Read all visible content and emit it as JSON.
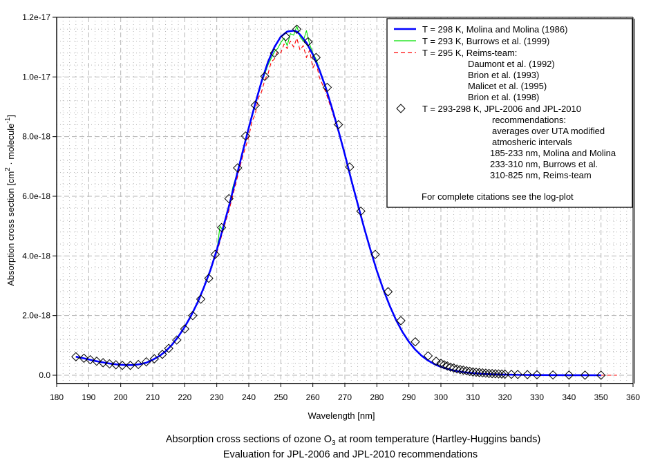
{
  "chart_data": {
    "type": "line",
    "title": "Absorption cross sections of ozone O3 at room temperature (Hartley-Huggins bands)",
    "title_parts": {
      "before": "Absorption cross sections of ozone O",
      "subscript": "3",
      "after": " at room temperature (Hartley-Huggins bands)"
    },
    "subtitle": "Evaluation for JPL-2006 and JPL-2010 recommendations",
    "xlabel": "Wavelength [nm]",
    "ylabel_parts": {
      "a": "Absorption cross section [cm",
      "sup1": "2",
      "b": " · molecule",
      "sup2": "-1",
      "c": "]"
    },
    "ylabel": "Absorption cross section [cm2 · molecule-1]",
    "xlim": [
      180,
      360
    ],
    "ylim": [
      0,
      1.2e-17
    ],
    "y_unit": 1e-18,
    "grid": true,
    "legend_position": "top-right",
    "x_ticks": [
      "180",
      "190",
      "200",
      "210",
      "220",
      "230",
      "240",
      "250",
      "260",
      "270",
      "280",
      "290",
      "300",
      "310",
      "320",
      "330",
      "340",
      "350",
      "360"
    ],
    "x_tick_values": [
      180,
      190,
      200,
      210,
      220,
      230,
      240,
      250,
      260,
      270,
      280,
      290,
      300,
      310,
      320,
      330,
      340,
      350,
      360
    ],
    "y_ticks": [
      "0.0",
      "2.0e-18",
      "4.0e-18",
      "6.0e-18",
      "8.0e-18",
      "1.0e-17",
      "1.2e-17"
    ],
    "y_tick_values": [
      0,
      2,
      4,
      6,
      8,
      10,
      12
    ],
    "colors": {
      "molina": "#0000ff",
      "burrows": "#00e000",
      "reims": "#ff0000",
      "jpl": "#000000",
      "grid": "#b4b4b4"
    },
    "series": [
      {
        "name": "T = 298 K, Molina and Molina (1986)",
        "style": "solid-thick",
        "color": "#0000ff",
        "x": [
          186,
          188,
          190,
          192,
          194,
          196,
          198,
          200,
          202,
          204,
          206,
          208,
          210,
          212,
          214,
          216,
          218,
          220,
          222,
          224,
          226,
          228,
          230,
          232,
          234,
          236,
          238,
          240,
          242,
          244,
          246,
          248,
          250,
          252,
          254,
          255,
          256,
          258,
          260,
          262,
          264,
          266,
          268,
          270,
          272,
          274,
          276,
          278,
          280,
          282,
          284,
          286,
          288,
          290,
          292,
          294,
          296,
          298,
          300,
          302,
          304,
          306,
          308,
          310,
          312,
          314,
          316,
          318,
          320,
          325,
          330,
          335,
          340,
          345,
          350
        ],
        "values": [
          0.62,
          0.58,
          0.53,
          0.48,
          0.44,
          0.4,
          0.37,
          0.35,
          0.34,
          0.34,
          0.37,
          0.42,
          0.52,
          0.64,
          0.8,
          1.02,
          1.3,
          1.62,
          2.0,
          2.44,
          2.95,
          3.52,
          4.2,
          4.95,
          5.75,
          6.6,
          7.45,
          8.3,
          9.1,
          9.85,
          10.5,
          11.0,
          11.35,
          11.52,
          11.55,
          11.52,
          11.42,
          11.15,
          10.75,
          10.25,
          9.65,
          8.95,
          8.2,
          7.4,
          6.55,
          5.75,
          4.95,
          4.2,
          3.5,
          2.88,
          2.33,
          1.85,
          1.45,
          1.12,
          0.86,
          0.65,
          0.49,
          0.37,
          0.28,
          0.21,
          0.16,
          0.12,
          0.09,
          0.07,
          0.05,
          0.04,
          0.03,
          0.025,
          0.02,
          0.012,
          0.008,
          0.005,
          0.003,
          0.002,
          0.001
        ]
      },
      {
        "name": "T = 293 K, Burrows et al. (1999)",
        "style": "solid-thin",
        "color": "#00e000",
        "x": [
          230,
          231,
          232,
          233,
          234,
          235,
          236,
          238,
          240,
          242,
          244,
          246,
          248,
          249,
          250,
          251,
          252,
          253,
          254,
          255,
          256,
          257,
          258,
          259,
          260,
          261,
          262,
          264,
          266,
          268,
          270,
          272,
          274,
          276,
          278,
          280,
          282,
          284,
          286,
          288,
          290,
          292,
          294,
          296,
          298,
          300,
          302,
          305,
          310,
          315,
          320,
          330,
          340,
          350
        ],
        "values": [
          4.15,
          5.0,
          4.85,
          5.35,
          5.7,
          6.3,
          6.65,
          7.45,
          8.25,
          9.05,
          9.8,
          10.4,
          10.85,
          10.95,
          11.15,
          11.3,
          11.05,
          11.45,
          11.4,
          11.7,
          11.35,
          11.2,
          11.55,
          11.1,
          10.8,
          10.6,
          10.3,
          9.7,
          8.9,
          8.2,
          7.45,
          6.6,
          5.75,
          4.95,
          4.2,
          3.5,
          2.88,
          2.33,
          1.85,
          1.45,
          1.12,
          0.86,
          0.65,
          0.49,
          0.37,
          0.28,
          0.21,
          0.13,
          0.07,
          0.04,
          0.02,
          0.008,
          0.003,
          0.001
        ]
      },
      {
        "name": "T = 295 K, Reims-team: Daumont et al. (1992), Brion et al. (1993), Malicet et al. (1995), Brion et al. (1998)",
        "style": "dashed",
        "color": "#ff0000",
        "x": [
          194,
          196,
          198,
          200,
          202,
          204,
          206,
          208,
          210,
          212,
          214,
          216,
          218,
          220,
          222,
          224,
          226,
          228,
          230,
          232,
          234,
          236,
          238,
          240,
          241,
          242,
          243,
          244,
          245,
          246,
          247,
          248,
          249,
          250,
          251,
          252,
          253,
          254,
          255,
          256,
          257,
          258,
          259,
          260,
          261,
          262,
          264,
          266,
          268,
          270,
          272,
          274,
          276,
          278,
          280,
          282,
          284,
          286,
          288,
          290,
          292,
          294,
          296,
          298,
          300,
          302,
          305,
          310,
          315,
          320,
          330,
          340,
          350,
          355
        ],
        "values": [
          0.44,
          0.4,
          0.37,
          0.35,
          0.34,
          0.34,
          0.37,
          0.42,
          0.52,
          0.64,
          0.8,
          1.02,
          1.3,
          1.62,
          2.0,
          2.44,
          2.95,
          3.5,
          4.1,
          4.85,
          5.6,
          6.45,
          7.3,
          8.0,
          8.5,
          8.75,
          9.3,
          9.5,
          9.9,
          10.1,
          10.5,
          10.6,
          10.85,
          10.8,
          11.1,
          10.95,
          11.2,
          11.0,
          11.3,
          10.9,
          11.05,
          10.65,
          10.9,
          10.3,
          10.5,
          10.0,
          9.5,
          8.85,
          8.15,
          7.38,
          6.52,
          5.72,
          4.93,
          4.18,
          3.48,
          2.86,
          2.32,
          1.84,
          1.44,
          1.11,
          0.85,
          0.64,
          0.48,
          0.36,
          0.27,
          0.2,
          0.12,
          0.06,
          0.03,
          0.015,
          0.006,
          0.002,
          0.001,
          0.0
        ]
      },
      {
        "name": "T = 293-298 K, JPL-2006 and JPL-2010 recommendations: averages over UTA modified atmosheric intervals",
        "style": "diamond-markers",
        "color": "#000000",
        "x": [
          186,
          188.5,
          190.5,
          192.5,
          194.5,
          196.5,
          198.5,
          200.5,
          203,
          205.5,
          208,
          210.5,
          213,
          215,
          217.5,
          220,
          222.5,
          225,
          227.5,
          229.5,
          231.5,
          233.8,
          236.5,
          239,
          242,
          245,
          248,
          251.5,
          255,
          258.5,
          261,
          264.5,
          268,
          271.5,
          275,
          279.5,
          283.5,
          287.5,
          292,
          296,
          298.5,
          300,
          301,
          302,
          303,
          304,
          305,
          306,
          307,
          308,
          309,
          310,
          311,
          312,
          313,
          314,
          315,
          316,
          317,
          318,
          319,
          320,
          322,
          324,
          327,
          330,
          335,
          340,
          345,
          350
        ],
        "values": [
          0.62,
          0.57,
          0.52,
          0.47,
          0.42,
          0.38,
          0.35,
          0.33,
          0.33,
          0.36,
          0.45,
          0.55,
          0.7,
          0.9,
          1.18,
          1.55,
          2.0,
          2.55,
          3.25,
          4.05,
          4.95,
          5.92,
          6.95,
          8.02,
          9.05,
          10.02,
          10.8,
          11.35,
          11.6,
          11.18,
          10.65,
          9.65,
          8.4,
          6.98,
          5.5,
          4.05,
          2.8,
          1.83,
          1.12,
          0.65,
          0.47,
          0.4,
          0.35,
          0.31,
          0.27,
          0.24,
          0.21,
          0.19,
          0.17,
          0.15,
          0.13,
          0.11,
          0.1,
          0.09,
          0.08,
          0.07,
          0.06,
          0.055,
          0.05,
          0.045,
          0.04,
          0.035,
          0.03,
          0.025,
          0.02,
          0.015,
          0.01,
          0.005,
          0.003,
          0.001
        ]
      }
    ]
  },
  "legend": {
    "entries": [
      {
        "label": "T = 298 K, Molina and Molina (1986)"
      },
      {
        "label": "T = 293 K, Burrows et al. (1999)"
      },
      {
        "label": "T = 295 K, Reims-team:"
      },
      {
        "label": "Daumont et al. (1992)"
      },
      {
        "label": "Brion et al. (1993)"
      },
      {
        "label": "Malicet et al. (1995)"
      },
      {
        "label": "Brion et al. (1998)"
      },
      {
        "label": "T = 293-298 K, JPL-2006 and JPL-2010"
      },
      {
        "label": "recommendations:"
      },
      {
        "label": "averages over UTA modified"
      },
      {
        "label": "atmosheric intervals"
      },
      {
        "label": "185-233 nm, Molina and Molina"
      },
      {
        "label": "233-310 nm, Burrows et al."
      },
      {
        "label": "310-825 nm, Reims-team"
      },
      {
        "label": "For complete citations see the log-plot"
      }
    ]
  }
}
